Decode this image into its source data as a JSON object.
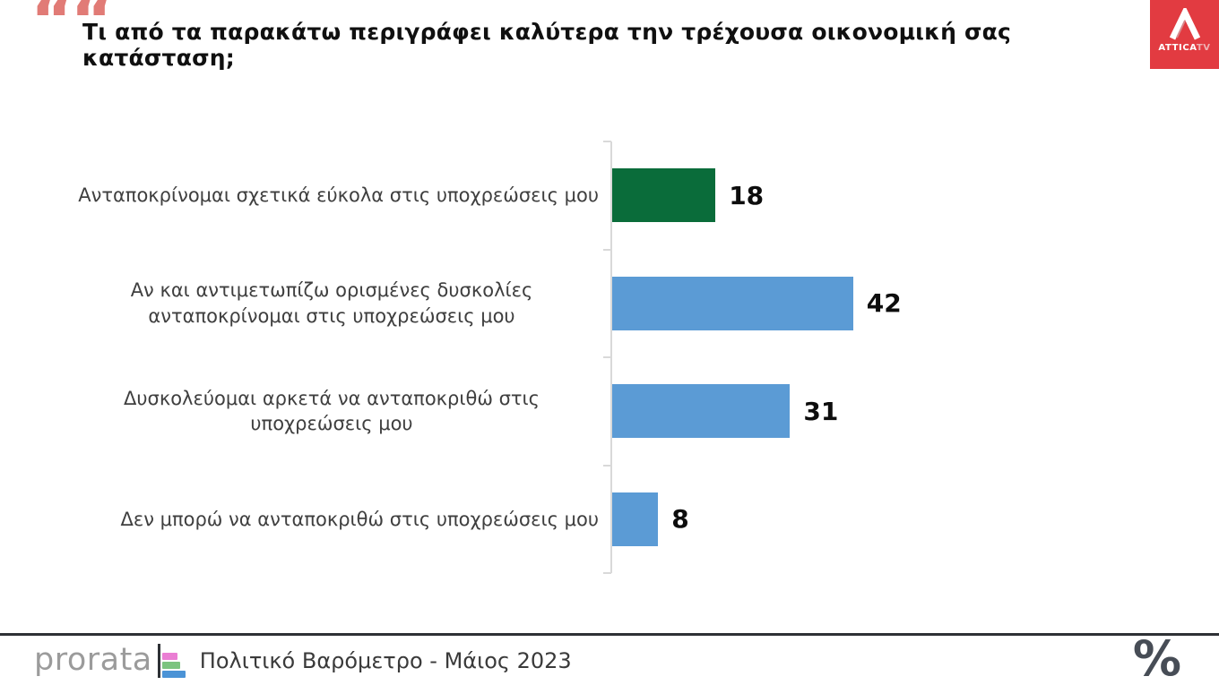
{
  "header": {
    "quote_icon": "““",
    "title": "Τι από τα παρακάτω περιγράφει καλύτερα την τρέχουσα οικονομική σας κατάσταση;"
  },
  "attica": {
    "brand": "ATTICA",
    "suffix": "TV",
    "bg_color": "#e23b41"
  },
  "chart_data": {
    "type": "bar",
    "orientation": "horizontal",
    "title": "Τι από τα παρακάτω περιγράφει καλύτερα την τρέχουσα οικονομική σας κατάσταση;",
    "categories": [
      "Ανταποκρίνομαι σχετικά εύκολα στις υποχρεώσεις μου",
      "Αν και αντιμετωπίζω ορισμένες δυσκολίες ανταποκρίνομαι στις υποχρεώσεις μου",
      "Δυσκολεύομαι αρκετά να ανταποκριθώ στις υποχρεώσεις μου",
      "Δεν μπορώ να ανταποκριθώ στις υποχρεώσεις μου"
    ],
    "values": [
      18,
      42,
      31,
      8
    ],
    "value_labels": [
      "18",
      "42",
      "31",
      "8"
    ],
    "bar_colors": [
      "#0a6c3a",
      "#5b9bd5",
      "#5b9bd5",
      "#5b9bd5"
    ],
    "xlabel": "",
    "ylabel": "",
    "legend": "none",
    "grid": false,
    "axis_line_color": "#d9d9d9"
  },
  "footer": {
    "logo_text": "prorata",
    "caption": "Πολιτικό Βαρόμετρο - Μάιος 2023",
    "percent_mark": "%"
  },
  "colors": {
    "accent_green": "#0a6c3a",
    "accent_blue": "#5b9bd5",
    "quote_red": "#e17b76",
    "attica_red": "#e23b41"
  }
}
